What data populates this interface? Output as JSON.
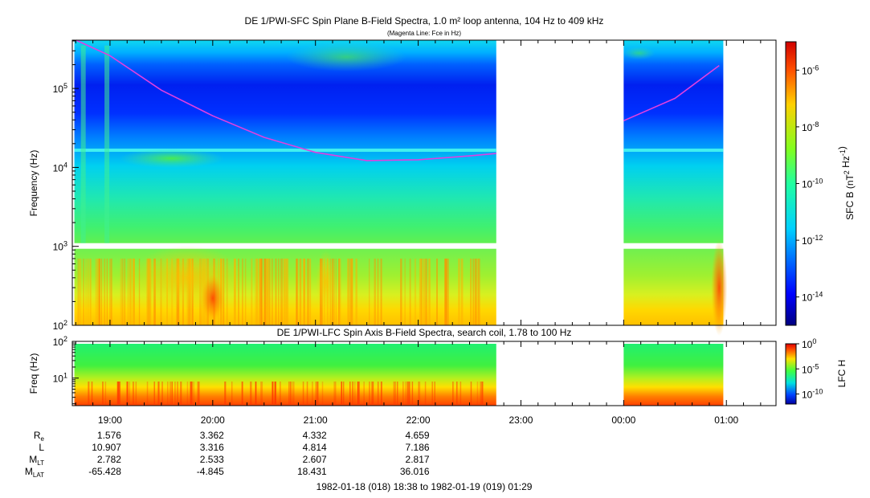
{
  "chart_data": [
    {
      "type": "heatmap",
      "title": "DE 1/PWI-SFC  Spin Plane B-Field Spectra, 1.0 m² loop antenna, 104 Hz to 409 kHz",
      "subtitle": "(Magenta Line: Fce in Hz)",
      "ylabel": "Frequency (Hz)",
      "yscale": "log",
      "ylim": [
        100,
        409000
      ],
      "y_ticks": [
        {
          "base": "10",
          "exp": "2"
        },
        {
          "base": "10",
          "exp": "3"
        },
        {
          "base": "10",
          "exp": "4"
        },
        {
          "base": "10",
          "exp": "5"
        }
      ],
      "colorbar": {
        "label_parts": [
          {
            "t": "SFC B (nT",
            "sup": false
          },
          {
            "t": "2",
            "sup": true
          },
          {
            "t": " Hz",
            "sup": false
          },
          {
            "t": "-1",
            "sup": true
          },
          {
            "t": ")",
            "sup": false
          }
        ],
        "scale": "log",
        "range": [
          1e-15,
          1e-05
        ],
        "ticks": [
          {
            "base": "10",
            "exp": "-14",
            "log": -14
          },
          {
            "base": "10",
            "exp": "-12",
            "log": -12
          },
          {
            "base": "10",
            "exp": "-10",
            "log": -10
          },
          {
            "base": "10",
            "exp": "-8",
            "log": -8
          },
          {
            "base": "10",
            "exp": "-6",
            "log": -6
          }
        ]
      },
      "data_gap_hours": [
        [
          22.76,
          24.0
        ]
      ],
      "fce_line": {
        "name": "Fce",
        "color": "#e040e0",
        "segment1": [
          [
            18.67,
            409000
          ],
          [
            19.0,
            260000
          ],
          [
            19.5,
            95000
          ],
          [
            20.0,
            45000
          ],
          [
            20.5,
            24000
          ],
          [
            21.0,
            15500
          ],
          [
            21.5,
            12200
          ],
          [
            22.0,
            12500
          ],
          [
            22.5,
            14000
          ],
          [
            22.76,
            15000
          ]
        ],
        "segment2": [
          [
            24.0,
            39000
          ],
          [
            24.5,
            75000
          ],
          [
            24.93,
            195000
          ]
        ]
      }
    },
    {
      "type": "heatmap",
      "title": "DE 1/PWI-LFC  Spin Axis B-Field Spectra, search coil, 1.78 to 100 Hz",
      "ylabel": "Freq (Hz)",
      "yscale": "log",
      "ylim": [
        1.78,
        100
      ],
      "y_ticks": [
        {
          "base": "10",
          "exp": "1"
        },
        {
          "base": "10",
          "exp": "2"
        }
      ],
      "colorbar": {
        "label": "LFC H",
        "scale": "log",
        "range": [
          1e-12,
          1
        ],
        "ticks": [
          {
            "base": "10",
            "exp": "-10",
            "log": -10
          },
          {
            "base": "10",
            "exp": "-5",
            "log": -5
          },
          {
            "base": "10",
            "exp": "0",
            "log": 0
          }
        ]
      },
      "data_gap_hours": [
        [
          22.76,
          24.0
        ]
      ]
    }
  ],
  "x_axis": {
    "range_hours": [
      18.633,
      25.483
    ],
    "ticks": [
      {
        "label": "19:00",
        "h": 19
      },
      {
        "label": "20:00",
        "h": 20
      },
      {
        "label": "21:00",
        "h": 21
      },
      {
        "label": "22:00",
        "h": 22
      },
      {
        "label": "23:00",
        "h": 23
      },
      {
        "label": "00:00",
        "h": 24
      },
      {
        "label": "01:00",
        "h": 25
      }
    ]
  },
  "ephemeris": [
    {
      "label": "R",
      "sub": "e",
      "values": [
        "1.576",
        "3.362",
        "4.332",
        "4.659"
      ]
    },
    {
      "label": "L",
      "sub": "",
      "values": [
        "10.907",
        "3.316",
        "4.814",
        "7.186"
      ]
    },
    {
      "label": "M",
      "sub": "LT",
      "values": [
        "2.782",
        "2.533",
        "2.607",
        "2.817"
      ]
    },
    {
      "label": "M",
      "sub": "LAT",
      "values": [
        "-65.428",
        "-4.845",
        "18.431",
        "36.016"
      ]
    }
  ],
  "time_range": "1982-01-18 (018) 18:38 to 1982-01-19 (019) 01:29"
}
